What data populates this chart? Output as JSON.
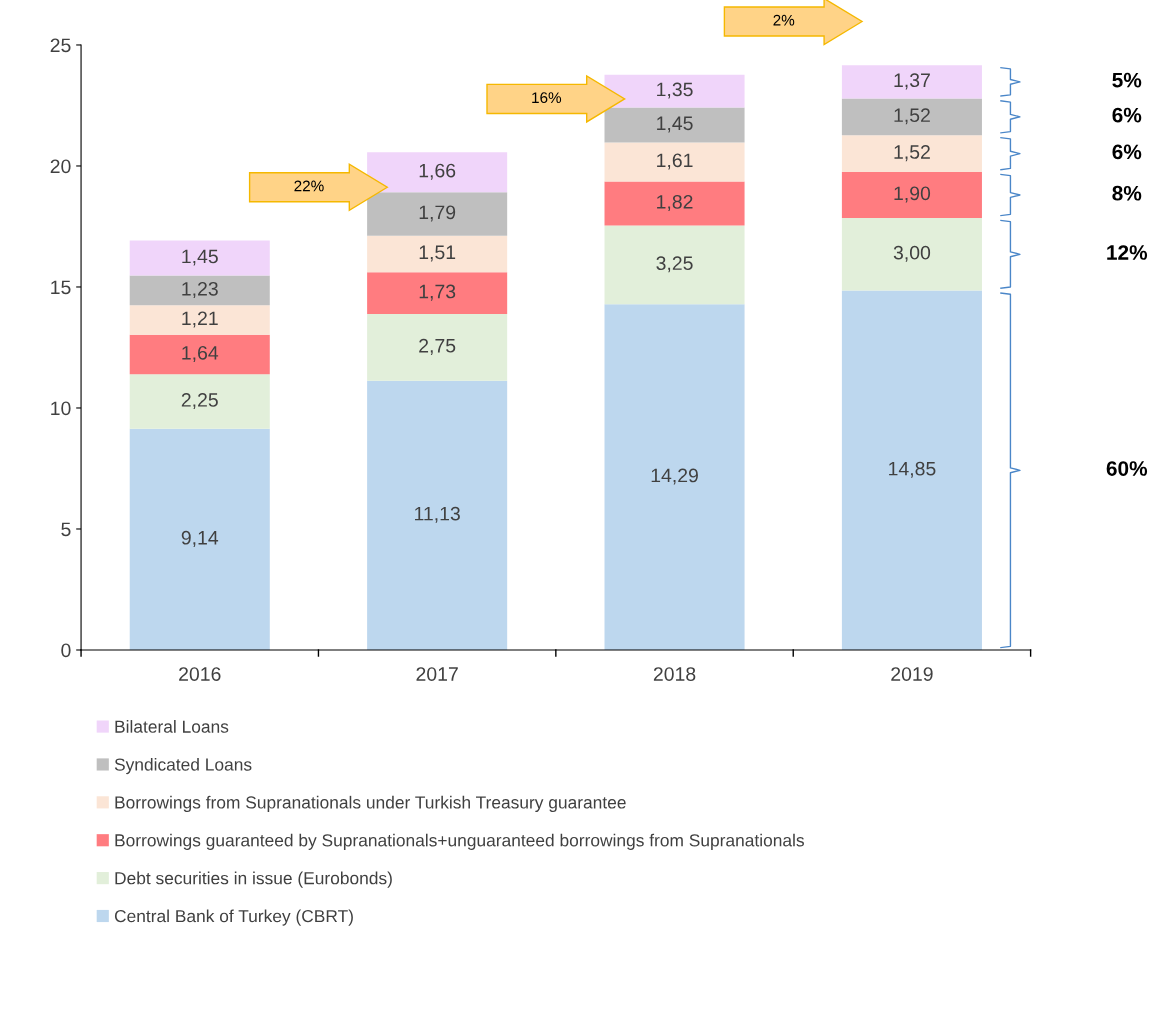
{
  "chart_data": {
    "type": "bar",
    "stacked": true,
    "categories": [
      "2016",
      "2017",
      "2018",
      "2019"
    ],
    "series": [
      {
        "name": "Central Bank of Turkey (CBRT)",
        "color": "#bdd7ee",
        "values": [
          9.14,
          11.13,
          14.29,
          14.85
        ],
        "value_labels": [
          "9,14",
          "11,13",
          "14,29",
          "14,85"
        ]
      },
      {
        "name": "Debt securities in issue (Eurobonds)",
        "color": "#e2efda",
        "values": [
          2.25,
          2.75,
          3.25,
          3.0
        ],
        "value_labels": [
          "2,25",
          "2,75",
          "3,25",
          "3,00"
        ]
      },
      {
        "name": "Borrowings guaranteed by Supranationals+unguaranteed borrowings from Supranationals",
        "color": "#ff7c80",
        "values": [
          1.64,
          1.73,
          1.82,
          1.9
        ],
        "value_labels": [
          "1,64",
          "1,73",
          "1,82",
          "1,90"
        ]
      },
      {
        "name": "Borrowings from Supranationals under Turkish Treasury guarantee",
        "color": "#fbe5d6",
        "values": [
          1.21,
          1.51,
          1.61,
          1.52
        ],
        "value_labels": [
          "1,21",
          "1,51",
          "1,61",
          "1,52"
        ]
      },
      {
        "name": "Syndicated Loans",
        "color": "#bfbfbf",
        "values": [
          1.23,
          1.79,
          1.45,
          1.52
        ],
        "value_labels": [
          "1,23",
          "1,79",
          "1,45",
          "1,52"
        ]
      },
      {
        "name": "Bilateral Loans",
        "color": "#f0d5fa",
        "values": [
          1.45,
          1.66,
          1.35,
          1.37
        ],
        "value_labels": [
          "1,45",
          "1,66",
          "1,35",
          "1,37"
        ]
      }
    ],
    "ylim": [
      0,
      25
    ],
    "yticks": [
      0,
      5,
      10,
      15,
      20,
      25
    ],
    "grid": false,
    "legend": "bottom",
    "annotations": [
      "22%",
      "16%",
      "2%",
      "5%",
      "6%",
      "6%",
      "8%",
      "12%",
      "60%"
    ]
  }
}
